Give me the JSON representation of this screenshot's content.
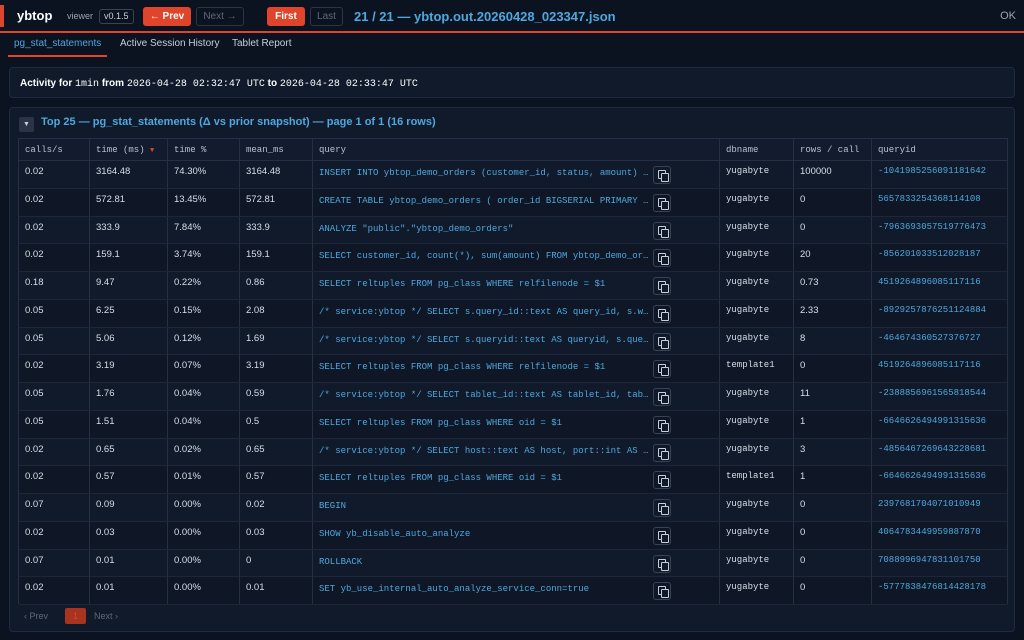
{
  "header": {
    "brand": "ybtop",
    "viewer_label": "viewer",
    "version": "v0.1.5",
    "prev_label": "← Prev",
    "next_label": "Next →",
    "first_label": "First",
    "last_label": "Last",
    "title": "21 / 21 — ybtop.out.20260428_023347.json",
    "status": "OK"
  },
  "tabs": [
    {
      "label": "pg_stat_statements",
      "active": true
    },
    {
      "label": "Active Session History",
      "active": false
    },
    {
      "label": "Tablet Report",
      "active": false
    }
  ],
  "activity": {
    "prefix": "Activity for",
    "window": "1min",
    "from_label": "from",
    "from": "2026-04-28 02:32:47 UTC",
    "to_label": "to",
    "to": "2026-04-28 02:33:47 UTC"
  },
  "panel": {
    "toggle": "▼",
    "title": "Top 25 — pg_stat_statements (Δ vs prior snapshot) — page 1 of 1 (16 rows)"
  },
  "table": {
    "columns": [
      "calls/s",
      "time (ms)",
      "time %",
      "mean_ms",
      "query",
      "dbname",
      "rows / call",
      "queryid"
    ],
    "sort_indicator": "▼",
    "rows": [
      {
        "calls": "0.02",
        "time": "3164.48",
        "pct": "74.30%",
        "mean": "3164.48",
        "query": "INSERT INTO ybtop_demo_orders (customer_id, status, amount) SELECT",
        "db": "yugabyte",
        "rpc": "100000",
        "qid": "-1041985256091181642"
      },
      {
        "calls": "0.02",
        "time": "572.81",
        "pct": "13.45%",
        "mean": "572.81",
        "query": "CREATE TABLE ybtop_demo_orders ( order_id BIGSERIAL PRIMARY KEY",
        "db": "yugabyte",
        "rpc": "0",
        "qid": "5657833254368114108"
      },
      {
        "calls": "0.02",
        "time": "333.9",
        "pct": "7.84%",
        "mean": "333.9",
        "query": "ANALYZE \"public\".\"ybtop_demo_orders\"",
        "db": "yugabyte",
        "rpc": "0",
        "qid": "-7963693057519776473"
      },
      {
        "calls": "0.02",
        "time": "159.1",
        "pct": "3.74%",
        "mean": "159.1",
        "query": "SELECT customer_id, count(*), sum(amount) FROM ybtop_demo_orders",
        "db": "yugabyte",
        "rpc": "20",
        "qid": "-856201033512028187"
      },
      {
        "calls": "0.18",
        "time": "9.47",
        "pct": "0.22%",
        "mean": "0.86",
        "query": "SELECT reltuples FROM pg_class WHERE relfilenode = $1",
        "db": "yugabyte",
        "rpc": "0.73",
        "qid": "4519264896085117116"
      },
      {
        "calls": "0.05",
        "time": "6.25",
        "pct": "0.15%",
        "mean": "2.08",
        "query": "/* service:ybtop */ SELECT s.query_id::text AS query_id, s.wait",
        "db": "yugabyte",
        "rpc": "2.33",
        "qid": "-8929257876251124884"
      },
      {
        "calls": "0.05",
        "time": "5.06",
        "pct": "0.12%",
        "mean": "1.69",
        "query": "/* service:ybtop */ SELECT s.queryid::text AS queryid, s.query",
        "db": "yugabyte",
        "rpc": "8",
        "qid": "-464674360527376727"
      },
      {
        "calls": "0.02",
        "time": "3.19",
        "pct": "0.07%",
        "mean": "3.19",
        "query": "SELECT reltuples FROM pg_class WHERE relfilenode = $1",
        "db": "template1",
        "rpc": "0",
        "qid": "4519264896085117116"
      },
      {
        "calls": "0.05",
        "time": "1.76",
        "pct": "0.04%",
        "mean": "0.59",
        "query": "/* service:ybtop */ SELECT tablet_id::text AS tablet_id, table_name",
        "db": "yugabyte",
        "rpc": "11",
        "qid": "-2388856961565818544"
      },
      {
        "calls": "0.05",
        "time": "1.51",
        "pct": "0.04%",
        "mean": "0.5",
        "query": "SELECT reltuples FROM pg_class WHERE oid = $1",
        "db": "yugabyte",
        "rpc": "1",
        "qid": "-6646626494991315636"
      },
      {
        "calls": "0.02",
        "time": "0.65",
        "pct": "0.02%",
        "mean": "0.65",
        "query": "/* service:ybtop */ SELECT host::text AS host, port::int AS port",
        "db": "yugabyte",
        "rpc": "3",
        "qid": "-4856467269643228681"
      },
      {
        "calls": "0.02",
        "time": "0.57",
        "pct": "0.01%",
        "mean": "0.57",
        "query": "SELECT reltuples FROM pg_class WHERE oid = $1",
        "db": "template1",
        "rpc": "1",
        "qid": "-6646626494991315636"
      },
      {
        "calls": "0.07",
        "time": "0.09",
        "pct": "0.00%",
        "mean": "0.02",
        "query": "BEGIN",
        "db": "yugabyte",
        "rpc": "0",
        "qid": "2397681704071010949"
      },
      {
        "calls": "0.02",
        "time": "0.03",
        "pct": "0.00%",
        "mean": "0.03",
        "query": "SHOW yb_disable_auto_analyze",
        "db": "yugabyte",
        "rpc": "0",
        "qid": "4064783449959887870"
      },
      {
        "calls": "0.07",
        "time": "0.01",
        "pct": "0.00%",
        "mean": "0",
        "query": "ROLLBACK",
        "db": "yugabyte",
        "rpc": "0",
        "qid": "7088996947831101750"
      },
      {
        "calls": "0.02",
        "time": "0.01",
        "pct": "0.00%",
        "mean": "0.01",
        "query": "SET yb_use_internal_auto_analyze_service_conn=true",
        "db": "yugabyte",
        "rpc": "0",
        "qid": "-5777838476814428178"
      }
    ]
  },
  "pager": {
    "prev": "‹ Prev",
    "current": "1",
    "next": "Next ›"
  }
}
